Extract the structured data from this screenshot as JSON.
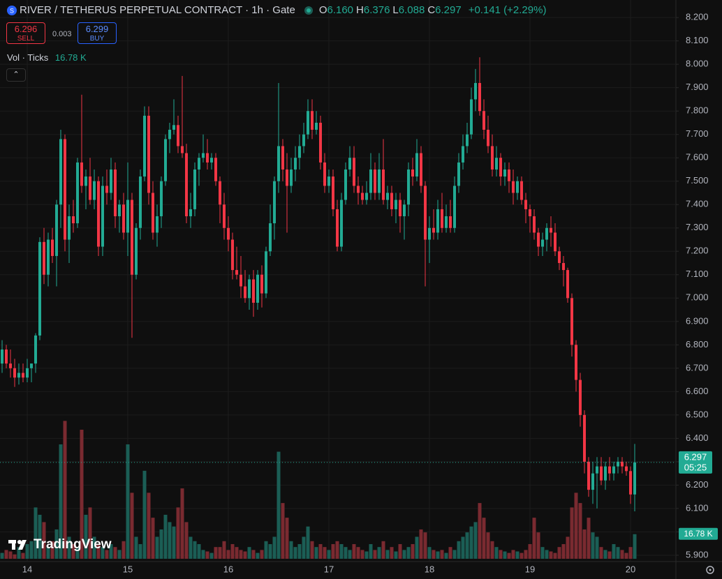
{
  "header": {
    "symbol": "RIVER / TETHERUS PERPETUAL CONTRACT · 1h · Gate",
    "ohlc": [
      {
        "key": "O",
        "value": "6.160"
      },
      {
        "key": "H",
        "value": "6.376"
      },
      {
        "key": "L",
        "value": "6.088"
      },
      {
        "key": "C",
        "value": "6.297"
      }
    ],
    "change": "+0.141 (+2.29%)",
    "sell": {
      "price": "6.296",
      "label": "SELL"
    },
    "spread": "0.003",
    "buy": {
      "price": "6.299",
      "label": "BUY"
    },
    "volume_legend": {
      "label": "Vol · Ticks",
      "value": "16.78 K"
    },
    "logo": "TradingView"
  },
  "chart_data": {
    "type": "candlestick",
    "categories": [
      null,
      null,
      null,
      null,
      null,
      null,
      "14",
      null,
      null,
      null,
      null,
      null,
      null,
      null,
      null,
      null,
      null,
      null,
      null,
      null,
      null,
      null,
      null,
      null,
      null,
      null,
      null,
      null,
      null,
      null,
      "15",
      null,
      null,
      null,
      null,
      null,
      null,
      null,
      null,
      null,
      null,
      null,
      null,
      null,
      null,
      null,
      null,
      null,
      null,
      null,
      null,
      null,
      null,
      null,
      "16",
      null,
      null,
      null,
      null,
      null,
      null,
      null,
      null,
      null,
      null,
      null,
      null,
      null,
      null,
      null,
      null,
      null,
      null,
      null,
      null,
      null,
      null,
      null,
      "17",
      null,
      null,
      null,
      null,
      null,
      null,
      null,
      null,
      null,
      null,
      null,
      null,
      null,
      null,
      null,
      null,
      null,
      null,
      null,
      null,
      null,
      null,
      null,
      "18",
      null,
      null,
      null,
      null,
      null,
      null,
      null,
      null,
      null,
      null,
      null,
      null,
      null,
      null,
      null,
      null,
      null,
      null,
      null,
      null,
      null,
      null,
      null,
      "19",
      null,
      null,
      null,
      null,
      null,
      null,
      null,
      null,
      null,
      null,
      null,
      null,
      null,
      null,
      null,
      null,
      null,
      null,
      null,
      null,
      null,
      null,
      null,
      "20",
      null
    ],
    "open": [
      6.72,
      6.78,
      6.72,
      6.7,
      6.66,
      6.68,
      6.66,
      6.7,
      6.72,
      6.84,
      7.24,
      7.1,
      7.25,
      7.18,
      7.4,
      7.68,
      7.25,
      7.35,
      7.32,
      7.58,
      7.48,
      7.52,
      7.42,
      7.5,
      7.22,
      7.48,
      7.45,
      7.55,
      7.35,
      7.4,
      7.28,
      7.42,
      7.1,
      7.3,
      7.52,
      7.78,
      7.45,
      7.28,
      7.35,
      7.5,
      7.68,
      7.72,
      7.74,
      7.65,
      7.62,
      7.35,
      7.38,
      7.55,
      7.6,
      7.62,
      7.58,
      7.6,
      7.5,
      7.4,
      7.3,
      7.25,
      7.12,
      7.1,
      7.05,
      7.0,
      7.08,
      6.98,
      7.1,
      7.02,
      7.2,
      7.32,
      7.5,
      7.65,
      7.55,
      7.48,
      7.55,
      7.6,
      7.65,
      7.7,
      7.8,
      7.72,
      7.75,
      7.58,
      7.48,
      7.52,
      7.38,
      7.22,
      7.42,
      7.55,
      7.6,
      7.48,
      7.45,
      7.42,
      7.45,
      7.55,
      7.45,
      7.55,
      7.42,
      7.45,
      7.38,
      7.42,
      7.35,
      7.4,
      7.55,
      7.52,
      7.62,
      7.48,
      7.25,
      7.3,
      7.28,
      7.38,
      7.3,
      7.35,
      7.3,
      7.48,
      7.58,
      7.65,
      7.7,
      7.85,
      7.92,
      7.8,
      7.72,
      7.65,
      7.55,
      7.6,
      7.52,
      7.55,
      7.5,
      7.45,
      7.5,
      7.42,
      7.38,
      7.35,
      7.28,
      7.22,
      7.25,
      7.3,
      7.28,
      7.2,
      7.15,
      7.12,
      7.0,
      6.8,
      6.65,
      6.5,
      6.3,
      6.18,
      6.25,
      6.28,
      6.22,
      6.28,
      6.25,
      6.28,
      6.3,
      6.28,
      6.26,
      6.16
    ],
    "high": [
      6.82,
      6.8,
      6.78,
      6.74,
      6.72,
      6.72,
      6.74,
      6.72,
      6.85,
      7.26,
      7.3,
      7.28,
      7.3,
      7.42,
      7.72,
      7.7,
      7.4,
      7.42,
      7.6,
      7.87,
      7.55,
      7.6,
      7.55,
      7.52,
      7.52,
      7.55,
      7.6,
      7.58,
      7.42,
      7.45,
      7.58,
      7.45,
      7.32,
      7.55,
      7.82,
      7.82,
      7.5,
      7.4,
      7.52,
      7.7,
      7.75,
      7.85,
      7.78,
      7.95,
      7.66,
      7.45,
      7.58,
      7.62,
      7.7,
      7.68,
      7.62,
      7.62,
      7.52,
      7.45,
      7.35,
      7.28,
      7.22,
      7.18,
      7.12,
      7.1,
      7.12,
      7.12,
      7.14,
      7.22,
      7.4,
      7.52,
      7.92,
      7.68,
      7.62,
      7.6,
      7.65,
      7.7,
      7.75,
      7.85,
      7.85,
      7.8,
      7.78,
      7.62,
      7.55,
      7.55,
      7.42,
      7.45,
      7.58,
      7.65,
      7.65,
      7.52,
      7.48,
      7.5,
      7.62,
      7.58,
      7.62,
      7.68,
      7.48,
      7.48,
      7.45,
      7.45,
      7.42,
      7.58,
      7.6,
      7.68,
      7.65,
      7.5,
      7.35,
      7.38,
      7.42,
      7.45,
      7.4,
      7.42,
      7.52,
      7.62,
      7.7,
      7.75,
      7.9,
      7.98,
      8.03,
      7.85,
      7.78,
      7.7,
      7.65,
      7.62,
      7.58,
      7.58,
      7.55,
      7.52,
      7.52,
      7.45,
      7.4,
      7.38,
      7.3,
      7.28,
      7.32,
      7.35,
      7.32,
      7.22,
      7.18,
      7.13,
      7.02,
      6.82,
      6.68,
      6.52,
      6.32,
      6.3,
      6.32,
      6.32,
      6.3,
      6.32,
      6.3,
      6.32,
      6.32,
      6.3,
      6.28,
      6.376
    ],
    "low": [
      6.68,
      6.7,
      6.66,
      6.62,
      6.63,
      6.64,
      6.64,
      6.64,
      6.68,
      6.82,
      7.06,
      7.05,
      7.15,
      7.05,
      7.3,
      7.2,
      7.15,
      7.28,
      7.3,
      7.45,
      7.38,
      7.4,
      7.38,
      7.18,
      7.18,
      7.4,
      7.42,
      7.3,
      7.28,
      7.25,
      7.18,
      6.83,
      7.08,
      7.25,
      7.5,
      7.4,
      7.25,
      7.22,
      7.3,
      7.48,
      7.62,
      7.7,
      7.62,
      7.6,
      7.32,
      7.3,
      7.35,
      7.48,
      7.58,
      7.55,
      7.55,
      7.48,
      7.32,
      7.25,
      7.2,
      7.08,
      7.08,
      7.0,
      6.98,
      6.95,
      6.92,
      6.95,
      6.96,
      7.0,
      7.18,
      7.25,
      7.45,
      7.5,
      7.28,
      7.45,
      7.5,
      7.55,
      7.62,
      7.68,
      7.68,
      7.7,
      7.55,
      7.45,
      7.45,
      7.35,
      7.2,
      7.2,
      7.4,
      7.52,
      7.45,
      7.4,
      7.4,
      7.4,
      7.42,
      7.42,
      7.42,
      7.4,
      7.38,
      7.35,
      7.32,
      7.28,
      7.25,
      7.35,
      7.48,
      7.5,
      7.45,
      7.05,
      7.15,
      7.25,
      7.25,
      7.28,
      7.28,
      7.28,
      7.28,
      7.45,
      7.55,
      7.62,
      7.68,
      7.8,
      7.78,
      7.68,
      7.62,
      7.52,
      7.52,
      7.48,
      7.48,
      7.45,
      7.4,
      7.42,
      7.4,
      7.32,
      7.28,
      7.25,
      7.18,
      7.18,
      7.2,
      7.22,
      7.18,
      7.12,
      7.05,
      6.98,
      6.75,
      6.6,
      6.45,
      6.25,
      6.15,
      6.12,
      6.1,
      6.2,
      6.18,
      6.22,
      6.22,
      6.25,
      6.25,
      6.24,
      6.12,
      6.088
    ],
    "close": [
      6.78,
      6.72,
      6.7,
      6.66,
      6.68,
      6.66,
      6.7,
      6.72,
      6.84,
      7.24,
      7.1,
      7.25,
      7.18,
      7.4,
      7.68,
      7.25,
      7.35,
      7.32,
      7.58,
      7.48,
      7.52,
      7.42,
      7.5,
      7.22,
      7.48,
      7.45,
      7.55,
      7.35,
      7.4,
      7.28,
      7.42,
      7.1,
      7.3,
      7.52,
      7.78,
      7.45,
      7.28,
      7.35,
      7.5,
      7.68,
      7.72,
      7.74,
      7.65,
      7.62,
      7.35,
      7.38,
      7.55,
      7.6,
      7.62,
      7.58,
      7.6,
      7.5,
      7.4,
      7.3,
      7.25,
      7.12,
      7.1,
      7.05,
      7.0,
      7.08,
      6.98,
      7.1,
      7.02,
      7.2,
      7.32,
      7.5,
      7.65,
      7.55,
      7.48,
      7.55,
      7.6,
      7.65,
      7.7,
      7.8,
      7.72,
      7.75,
      7.58,
      7.48,
      7.52,
      7.38,
      7.22,
      7.42,
      7.55,
      7.6,
      7.48,
      7.45,
      7.42,
      7.45,
      7.55,
      7.45,
      7.55,
      7.42,
      7.45,
      7.38,
      7.42,
      7.35,
      7.4,
      7.55,
      7.52,
      7.62,
      7.48,
      7.25,
      7.3,
      7.28,
      7.38,
      7.3,
      7.35,
      7.3,
      7.48,
      7.58,
      7.65,
      7.7,
      7.85,
      7.92,
      7.8,
      7.72,
      7.65,
      7.55,
      7.6,
      7.52,
      7.55,
      7.5,
      7.45,
      7.5,
      7.42,
      7.38,
      7.35,
      7.28,
      7.22,
      7.25,
      7.3,
      7.28,
      7.2,
      7.15,
      7.12,
      7.0,
      6.8,
      6.65,
      6.5,
      6.3,
      6.18,
      6.25,
      6.28,
      6.22,
      6.28,
      6.25,
      6.28,
      6.3,
      6.28,
      6.26,
      6.16,
      6.297
    ],
    "volume": [
      4,
      6,
      5,
      3,
      8,
      4,
      10,
      12,
      35,
      30,
      25,
      8,
      12,
      20,
      78,
      94,
      15,
      10,
      8,
      88,
      30,
      35,
      15,
      10,
      8,
      6,
      10,
      8,
      6,
      12,
      78,
      45,
      15,
      10,
      60,
      45,
      28,
      15,
      20,
      30,
      25,
      22,
      35,
      48,
      25,
      15,
      12,
      10,
      6,
      5,
      4,
      8,
      8,
      12,
      6,
      10,
      8,
      6,
      5,
      8,
      6,
      4,
      6,
      12,
      10,
      15,
      73,
      38,
      28,
      12,
      8,
      10,
      15,
      22,
      12,
      8,
      10,
      8,
      6,
      10,
      12,
      10,
      8,
      6,
      10,
      8,
      6,
      5,
      10,
      6,
      8,
      12,
      6,
      8,
      5,
      10,
      6,
      8,
      10,
      15,
      20,
      18,
      8,
      6,
      5,
      6,
      4,
      8,
      6,
      12,
      15,
      18,
      22,
      25,
      38,
      28,
      18,
      12,
      8,
      6,
      5,
      4,
      6,
      5,
      4,
      6,
      10,
      28,
      18,
      8,
      6,
      5,
      4,
      8,
      10,
      15,
      35,
      45,
      38,
      20,
      28,
      18,
      15,
      8,
      6,
      5,
      10,
      8,
      6,
      4,
      8,
      16.78
    ],
    "ylim": [
      5.873,
      8.275
    ],
    "yticks": [
      {
        "value": 5.9,
        "label": "5.900"
      },
      {
        "value": 6.0,
        "label": "6.000"
      },
      {
        "value": 6.1,
        "label": "6.100"
      },
      {
        "value": 6.2,
        "label": "6.200"
      },
      {
        "value": 6.3,
        "label": "6.300"
      },
      {
        "value": 6.4,
        "label": "6.400"
      },
      {
        "value": 6.5,
        "label": "6.500"
      },
      {
        "value": 6.6,
        "label": "6.600"
      },
      {
        "value": 6.7,
        "label": "6.700"
      },
      {
        "value": 6.8,
        "label": "6.800"
      },
      {
        "value": 6.9,
        "label": "6.900"
      },
      {
        "value": 7.0,
        "label": "7.000"
      },
      {
        "value": 7.1,
        "label": "7.100"
      },
      {
        "value": 7.2,
        "label": "7.200"
      },
      {
        "value": 7.3,
        "label": "7.300"
      },
      {
        "value": 7.4,
        "label": "7.400"
      },
      {
        "value": 7.5,
        "label": "7.500"
      },
      {
        "value": 7.6,
        "label": "7.600"
      },
      {
        "value": 7.7,
        "label": "7.700"
      },
      {
        "value": 7.8,
        "label": "7.800"
      },
      {
        "value": 7.9,
        "label": "7.900"
      },
      {
        "value": 8.0,
        "label": "8.000"
      },
      {
        "value": 8.1,
        "label": "8.100"
      },
      {
        "value": 8.2,
        "label": "8.200"
      }
    ],
    "volume_ylim": [
      0,
      381
    ],
    "last_price": 6.297,
    "countdown": "05:25",
    "grid": true,
    "up_color": "#22ab94",
    "down_color": "#f23645",
    "volume_up_color": "#1b5e55",
    "volume_down_color": "#7a2a30"
  }
}
